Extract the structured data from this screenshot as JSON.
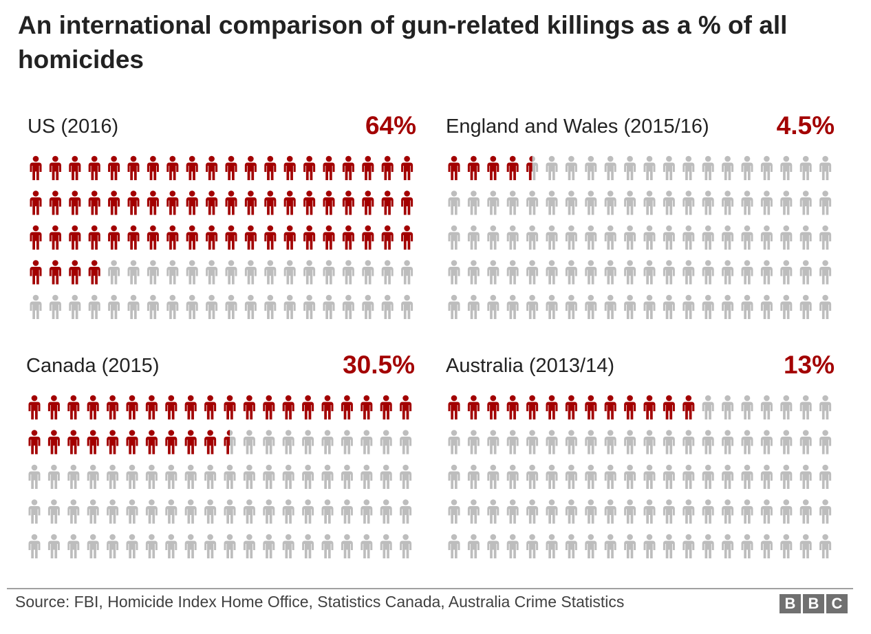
{
  "chart_data": {
    "type": "pictogram",
    "title": "An international comparison of gun-related killings as a % of all homicides",
    "icons_per_panel": 100,
    "grid": {
      "columns": 20,
      "rows": 5
    },
    "colors": {
      "filled": "#a30000",
      "empty": "#bdbdbd"
    },
    "panels": [
      {
        "label": "US (2016)",
        "pct_label": "64%",
        "value": 64
      },
      {
        "label": "England and Wales (2015/16)",
        "pct_label": "4.5%",
        "value": 4.5
      },
      {
        "label": "Canada (2015)",
        "pct_label": "30.5%",
        "value": 30.5
      },
      {
        "label": "Australia (2013/14)",
        "pct_label": "13%",
        "value": 13
      }
    ]
  },
  "footer": {
    "source": "Source: FBI, Homicide Index Home Office, Statistics Canada, Australia Crime Statistics",
    "logo": [
      "B",
      "B",
      "C"
    ]
  }
}
